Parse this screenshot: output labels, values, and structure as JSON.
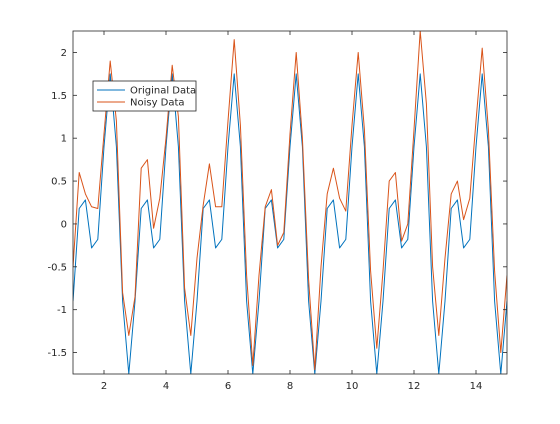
{
  "chart_data": {
    "type": "line",
    "xlim": [
      1,
      15
    ],
    "ylim": [
      -1.75,
      2.25
    ],
    "xticks": [
      2,
      4,
      6,
      8,
      10,
      12,
      14
    ],
    "yticks": [
      -1.5,
      -1,
      -0.5,
      0,
      0.5,
      1,
      1.5,
      2
    ],
    "xtick_labels": [
      "2",
      "4",
      "6",
      "8",
      "10",
      "12",
      "14"
    ],
    "ytick_labels": [
      "-1.5",
      "-1",
      "-0.5",
      "0",
      "0.5",
      "1",
      "1.5",
      "2"
    ],
    "legend_location": "top-left",
    "grid": false,
    "series": [
      {
        "name": "Original Data",
        "color": "#0072BD",
        "x": [
          1.0,
          1.2,
          1.4,
          1.6,
          1.8,
          2.0,
          2.2,
          2.4,
          2.6,
          2.8,
          3.0,
          3.2,
          3.4,
          3.6,
          3.8,
          4.0,
          4.2,
          4.4,
          4.6,
          4.8,
          5.0,
          5.2,
          5.4,
          5.6,
          5.8,
          6.0,
          6.2,
          6.4,
          6.6,
          6.8,
          7.0,
          7.2,
          7.4,
          7.6,
          7.8,
          8.0,
          8.2,
          8.4,
          8.6,
          8.8,
          9.0,
          9.2,
          9.4,
          9.6,
          9.8,
          10.0,
          10.2,
          10.4,
          10.6,
          10.8,
          11.0,
          11.2,
          11.4,
          11.6,
          11.8,
          12.0,
          12.2,
          12.4,
          12.6,
          12.8,
          13.0,
          13.2,
          13.4,
          13.6,
          13.8,
          14.0,
          14.2,
          14.4,
          14.6,
          14.8,
          15.0
        ],
        "y": [
          -0.9,
          0.18,
          0.28,
          -0.28,
          -0.18,
          0.9,
          1.75,
          0.9,
          -0.9,
          -1.75,
          -0.9,
          0.18,
          0.28,
          -0.28,
          -0.18,
          0.9,
          1.75,
          0.9,
          -0.9,
          -1.75,
          -0.9,
          0.18,
          0.28,
          -0.28,
          -0.18,
          0.9,
          1.75,
          0.9,
          -0.9,
          -1.75,
          -0.9,
          0.18,
          0.28,
          -0.28,
          -0.18,
          0.9,
          1.75,
          0.9,
          -0.9,
          -1.75,
          -0.9,
          0.18,
          0.28,
          -0.28,
          -0.18,
          0.9,
          1.75,
          0.9,
          -0.9,
          -1.75,
          -0.9,
          0.18,
          0.28,
          -0.28,
          -0.18,
          0.9,
          1.75,
          0.9,
          -0.9,
          -1.75,
          -0.9,
          0.18,
          0.28,
          -0.28,
          -0.18,
          0.9,
          1.75,
          0.9,
          -0.9,
          -1.75,
          -0.9
        ]
      },
      {
        "name": "Noisy Data",
        "color": "#D95319",
        "x": [
          1.0,
          1.2,
          1.4,
          1.6,
          1.8,
          2.0,
          2.2,
          2.4,
          2.6,
          2.8,
          3.0,
          3.2,
          3.4,
          3.6,
          3.8,
          4.0,
          4.2,
          4.4,
          4.6,
          4.8,
          5.0,
          5.2,
          5.4,
          5.6,
          5.8,
          6.0,
          6.2,
          6.4,
          6.6,
          6.8,
          7.0,
          7.2,
          7.4,
          7.6,
          7.8,
          8.0,
          8.2,
          8.4,
          8.6,
          8.8,
          9.0,
          9.2,
          9.4,
          9.6,
          9.8,
          10.0,
          10.2,
          10.4,
          10.6,
          10.8,
          11.0,
          11.2,
          11.4,
          11.6,
          11.8,
          12.0,
          12.2,
          12.4,
          12.6,
          12.8,
          13.0,
          13.2,
          13.4,
          13.6,
          13.8,
          14.0,
          14.2,
          14.4,
          14.6,
          14.8,
          15.0
        ],
        "y": [
          -0.5,
          0.6,
          0.35,
          0.2,
          0.18,
          1.05,
          1.9,
          1.2,
          -0.8,
          -1.3,
          -0.85,
          0.65,
          0.75,
          -0.05,
          0.3,
          1.0,
          1.85,
          1.25,
          -0.75,
          -1.3,
          -0.4,
          0.22,
          0.7,
          0.2,
          0.2,
          1.2,
          2.15,
          1.15,
          -0.6,
          -1.65,
          -0.6,
          0.2,
          0.4,
          -0.25,
          -0.1,
          1.05,
          2.0,
          1.0,
          -0.65,
          -1.7,
          -0.5,
          0.35,
          0.65,
          0.3,
          0.15,
          1.15,
          2.0,
          1.1,
          -0.55,
          -1.45,
          -0.55,
          0.5,
          0.6,
          -0.2,
          0.0,
          1.1,
          2.25,
          1.4,
          -0.5,
          -1.3,
          -0.4,
          0.35,
          0.5,
          0.05,
          0.3,
          1.2,
          2.05,
          1.1,
          -0.55,
          -1.5,
          -0.6
        ]
      }
    ]
  }
}
